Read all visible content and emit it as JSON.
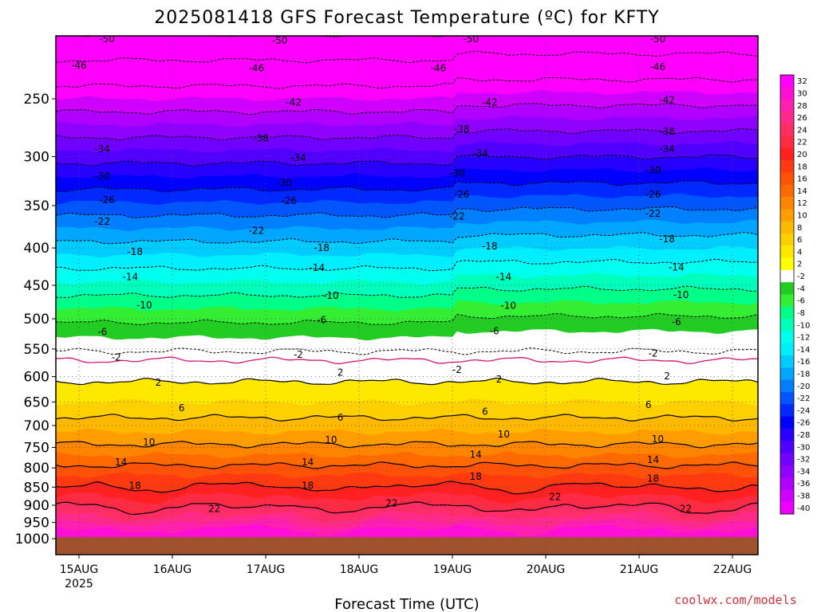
{
  "chart_data": {
    "type": "heatmap",
    "title": "2025081418 GFS Forecast Temperature (ºC) for KFTY",
    "xlabel": "Forecast Time (UTC)",
    "ylabel": "",
    "x_ticks": [
      "15AUG",
      "16AUG",
      "17AUG",
      "18AUG",
      "19AUG",
      "20AUG",
      "21AUG",
      "22AUG"
    ],
    "x_year": "2025",
    "y_ticks": [
      250,
      300,
      350,
      400,
      450,
      500,
      550,
      600,
      650,
      700,
      750,
      800,
      850,
      900,
      950,
      1000
    ],
    "ylim": [
      1000,
      200
    ],
    "y_scale": "log",
    "colorbar_ticks": [
      32,
      30,
      28,
      26,
      24,
      22,
      20,
      18,
      16,
      14,
      12,
      10,
      8,
      6,
      4,
      2,
      -2,
      -4,
      -6,
      -8,
      -10,
      -12,
      -14,
      -16,
      -18,
      -20,
      -22,
      -24,
      -26,
      -28,
      -30,
      -32,
      -34,
      -36,
      -38,
      -40
    ],
    "colorbar_colors": [
      "#ff00ff",
      "#ff0fd6",
      "#ff1fb0",
      "#ff2a8a",
      "#ff2d66",
      "#ff2b45",
      "#ff2020",
      "#ff3a10",
      "#ff5208",
      "#ff6a00",
      "#ff8400",
      "#ff9d00",
      "#ffb800",
      "#ffd000",
      "#ffe800",
      "#ffff00",
      "#ffffff",
      "#22cc22",
      "#33ee33",
      "#00ff88",
      "#00ffbb",
      "#00ffee",
      "#00eeff",
      "#00ccff",
      "#00a6ff",
      "#0080ff",
      "#0055ff",
      "#0028ff",
      "#0000ff",
      "#2800ff",
      "#5000ff",
      "#7000ff",
      "#9000ff",
      "#b000ff",
      "#d000ff",
      "#ee00ff"
    ],
    "contour_levels": {
      "dashed": [
        -50,
        -46,
        -42,
        -38,
        -34,
        -30,
        -26,
        -22,
        -18,
        -14,
        -10,
        -6,
        -2
      ],
      "solid": [
        2,
        6,
        10,
        14,
        18,
        22
      ],
      "zero": [
        0
      ]
    },
    "contour_labels": [
      {
        "v": "-50",
        "t": 0.3,
        "p": 207
      },
      {
        "v": "-50",
        "t": 2.15,
        "p": 208
      },
      {
        "v": "-50",
        "t": 4.2,
        "p": 207
      },
      {
        "v": "-50",
        "t": 6.2,
        "p": 207
      },
      {
        "v": "-46",
        "t": 0.0,
        "p": 225
      },
      {
        "v": "-46",
        "t": 1.9,
        "p": 227
      },
      {
        "v": "-46",
        "t": 3.85,
        "p": 227
      },
      {
        "v": "-46",
        "t": 6.2,
        "p": 226
      },
      {
        "v": "-42",
        "t": 2.3,
        "p": 253
      },
      {
        "v": "-42",
        "t": 4.4,
        "p": 253
      },
      {
        "v": "-42",
        "t": 6.3,
        "p": 251
      },
      {
        "v": "-38",
        "t": 1.95,
        "p": 283
      },
      {
        "v": "-38",
        "t": 4.1,
        "p": 275
      },
      {
        "v": "-38",
        "t": 6.3,
        "p": 277
      },
      {
        "v": "-34",
        "t": 0.25,
        "p": 293
      },
      {
        "v": "-34",
        "t": 2.35,
        "p": 301
      },
      {
        "v": "-34",
        "t": 4.3,
        "p": 297
      },
      {
        "v": "-34",
        "t": 6.3,
        "p": 293
      },
      {
        "v": "-30",
        "t": 0.25,
        "p": 319
      },
      {
        "v": "-30",
        "t": 2.2,
        "p": 326
      },
      {
        "v": "-30",
        "t": 4.05,
        "p": 316
      },
      {
        "v": "-30",
        "t": 6.15,
        "p": 313
      },
      {
        "v": "-26",
        "t": 0.3,
        "p": 344
      },
      {
        "v": "-26",
        "t": 2.25,
        "p": 345
      },
      {
        "v": "-26",
        "t": 4.1,
        "p": 338
      },
      {
        "v": "-26",
        "t": 6.15,
        "p": 338
      },
      {
        "v": "-22",
        "t": 0.25,
        "p": 368
      },
      {
        "v": "-22",
        "t": 1.9,
        "p": 379
      },
      {
        "v": "-22",
        "t": 4.05,
        "p": 362
      },
      {
        "v": "-22",
        "t": 6.15,
        "p": 359
      },
      {
        "v": "-18",
        "t": 0.6,
        "p": 405
      },
      {
        "v": "-18",
        "t": 2.6,
        "p": 400
      },
      {
        "v": "-18",
        "t": 4.4,
        "p": 398
      },
      {
        "v": "-18",
        "t": 6.3,
        "p": 389
      },
      {
        "v": "-14",
        "t": 0.55,
        "p": 438
      },
      {
        "v": "-14",
        "t": 2.55,
        "p": 426
      },
      {
        "v": "-14",
        "t": 4.55,
        "p": 438
      },
      {
        "v": "-14",
        "t": 6.4,
        "p": 425
      },
      {
        "v": "-10",
        "t": 0.7,
        "p": 479
      },
      {
        "v": "-10",
        "t": 2.7,
        "p": 465
      },
      {
        "v": "-10",
        "t": 4.6,
        "p": 480
      },
      {
        "v": "-10",
        "t": 6.45,
        "p": 464
      },
      {
        "v": "-6",
        "t": 0.25,
        "p": 521
      },
      {
        "v": "-6",
        "t": 2.6,
        "p": 502
      },
      {
        "v": "-6",
        "t": 4.45,
        "p": 520
      },
      {
        "v": "-6",
        "t": 6.4,
        "p": 505
      },
      {
        "v": "-2",
        "t": 0.4,
        "p": 565
      },
      {
        "v": "-2",
        "t": 2.35,
        "p": 560
      },
      {
        "v": "-2",
        "t": 4.05,
        "p": 587
      },
      {
        "v": "-2",
        "t": 6.15,
        "p": 558
      },
      {
        "v": "2",
        "t": 0.85,
        "p": 611
      },
      {
        "v": "2",
        "t": 2.8,
        "p": 592
      },
      {
        "v": "2",
        "t": 4.5,
        "p": 605
      },
      {
        "v": "2",
        "t": 6.3,
        "p": 599
      },
      {
        "v": "6",
        "t": 1.1,
        "p": 662
      },
      {
        "v": "6",
        "t": 2.8,
        "p": 683
      },
      {
        "v": "6",
        "t": 4.35,
        "p": 670
      },
      {
        "v": "6",
        "t": 6.1,
        "p": 656
      },
      {
        "v": "10",
        "t": 0.75,
        "p": 738
      },
      {
        "v": "10",
        "t": 2.7,
        "p": 732
      },
      {
        "v": "10",
        "t": 4.55,
        "p": 720
      },
      {
        "v": "10",
        "t": 6.2,
        "p": 731
      },
      {
        "v": "14",
        "t": 0.45,
        "p": 786
      },
      {
        "v": "14",
        "t": 2.45,
        "p": 786
      },
      {
        "v": "14",
        "t": 4.25,
        "p": 767
      },
      {
        "v": "14",
        "t": 6.15,
        "p": 780
      },
      {
        "v": "18",
        "t": 0.6,
        "p": 846
      },
      {
        "v": "18",
        "t": 2.45,
        "p": 846
      },
      {
        "v": "18",
        "t": 4.25,
        "p": 822
      },
      {
        "v": "18",
        "t": 6.15,
        "p": 827
      },
      {
        "v": "22",
        "t": 1.45,
        "p": 910
      },
      {
        "v": "22",
        "t": 3.35,
        "p": 894
      },
      {
        "v": "22",
        "t": 5.1,
        "p": 876
      },
      {
        "v": "22",
        "t": 6.5,
        "p": 910
      }
    ],
    "grid": true,
    "legend": "colorbar right"
  },
  "credit": "coolwx.com/models"
}
